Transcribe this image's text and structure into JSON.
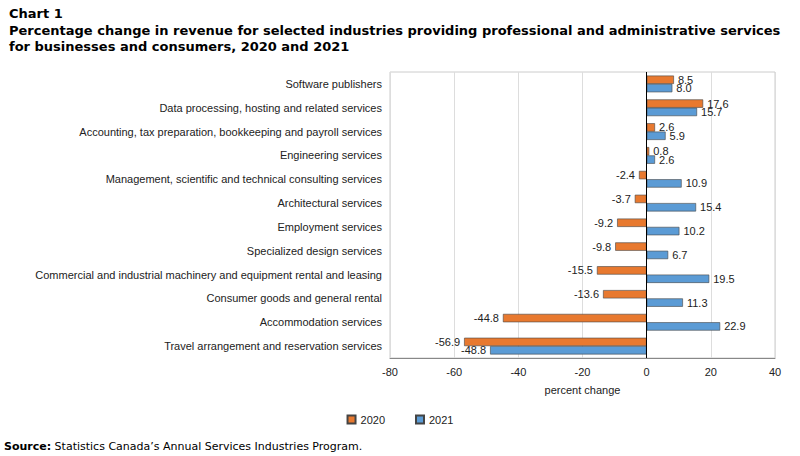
{
  "chart_data": {
    "type": "bar",
    "orientation": "horizontal",
    "title": "Chart 1",
    "subtitle": "Percentage change in revenue for selected industries providing professional and administrative services for businesses and consumers, 2020 and 2021",
    "x_label": "percent change",
    "categories": [
      "Software publishers",
      "Data processing, hosting and related services",
      "Accounting, tax preparation, bookkeeping and payroll services",
      "Engineering services",
      "Management, scientific and technical consulting services",
      "Architectural services",
      "Employment services",
      "Specialized design services",
      "Commercial and industrial machinery and equipment rental and leasing",
      "Consumer goods and general rental",
      "Accommodation services",
      "Travel arrangement and reservation services"
    ],
    "series": [
      {
        "name": "2020",
        "color": "#E8792F",
        "values": [
          8.5,
          17.6,
          2.6,
          0.8,
          -2.4,
          -3.7,
          -9.2,
          -9.8,
          -15.5,
          -13.6,
          -44.8,
          -56.9
        ],
        "value_labels": [
          "8.5",
          "17.6",
          "2.6",
          "0.8",
          "-2.4",
          "-3.7",
          "-9.2",
          "-9.8",
          "-15.5",
          "-13.6",
          "-44.8",
          "-56.9"
        ]
      },
      {
        "name": "2021",
        "color": "#5B9BD5",
        "values": [
          8.0,
          15.7,
          5.9,
          2.6,
          10.9,
          15.4,
          10.2,
          6.7,
          19.5,
          11.3,
          22.9,
          -48.8
        ],
        "value_labels": [
          "8.0",
          "15.7",
          "5.9",
          "2.6",
          "10.9",
          "15.4",
          "10.2",
          "6.7",
          "19.5",
          "11.3",
          "22.9",
          "-48.8"
        ]
      }
    ],
    "xlim": [
      -80,
      40
    ],
    "xticks": [
      -80,
      -60,
      -40,
      -20,
      0,
      20,
      40
    ],
    "grid": true,
    "legend": "bottom",
    "data_labels": true,
    "source": "Source: Statistics Canada’s Annual Services Industries Program."
  }
}
